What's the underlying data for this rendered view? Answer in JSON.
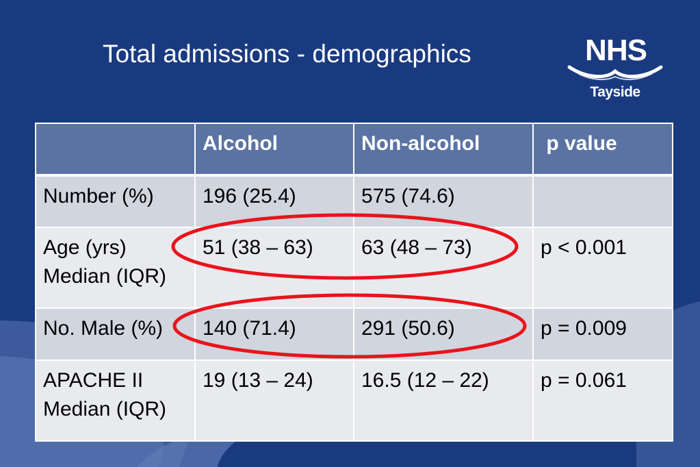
{
  "slide": {
    "title": "Total admissions - demographics",
    "logo": {
      "main": "NHS",
      "sub": "Tayside"
    },
    "colors": {
      "background": "#1a3a80",
      "header_row": "#5a73a3",
      "row_dark": "#d1d5de",
      "row_light": "#e8eaee",
      "highlight": "#e8141c"
    }
  },
  "table": {
    "headers": [
      "",
      "Alcohol",
      "Non-alcohol",
      " p value"
    ],
    "rows": [
      [
        "Number (%)",
        "196 (25.4)",
        "575 (74.6)",
        ""
      ],
      [
        "Age (yrs)\nMedian (IQR)",
        "51 (38 – 63)",
        "63 (48 – 73)",
        "p < 0.001"
      ],
      [
        "No. Male (%)",
        "140 (71.4)",
        "291 (50.6)",
        "p = 0.009"
      ],
      [
        "APACHE II\nMedian (IQR)",
        "19 (13 – 24)",
        "16.5 (12 – 22)",
        "p = 0.061"
      ]
    ]
  }
}
